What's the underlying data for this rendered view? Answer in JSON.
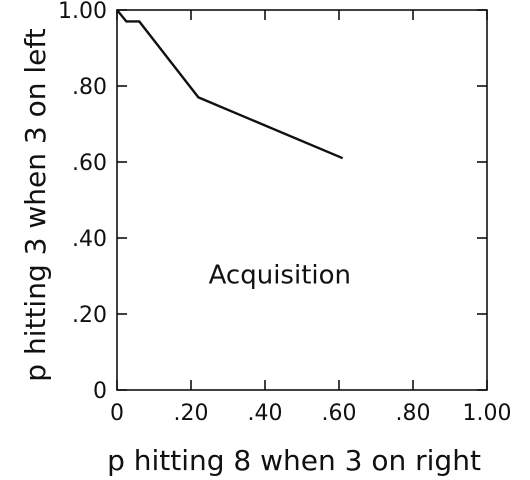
{
  "chart_data": {
    "type": "line",
    "title": "",
    "xlabel": "p hitting 8 when 3 on right",
    "ylabel": "p hitting 3 when 3 on left",
    "xlim": [
      0,
      1.0
    ],
    "ylim": [
      0,
      1.0
    ],
    "x_ticks": [
      0,
      0.2,
      0.4,
      0.6,
      0.8,
      1.0
    ],
    "x_tick_labels": [
      "0",
      ".20",
      ".40",
      ".60",
      ".80",
      "1.00"
    ],
    "y_ticks": [
      0,
      0.2,
      0.4,
      0.6,
      0.8,
      1.0
    ],
    "y_tick_labels": [
      "0",
      ".20",
      ".40",
      ".60",
      ".80",
      "1.00"
    ],
    "annotations": [
      {
        "text": "Acquisition",
        "x": 0.44,
        "y": 0.28
      }
    ],
    "series": [
      {
        "x": [
          0.0,
          0.025,
          0.06,
          0.22,
          0.61
        ],
        "y": [
          1.0,
          0.97,
          0.97,
          0.77,
          0.61
        ]
      }
    ],
    "grid": false,
    "legend": "none"
  }
}
